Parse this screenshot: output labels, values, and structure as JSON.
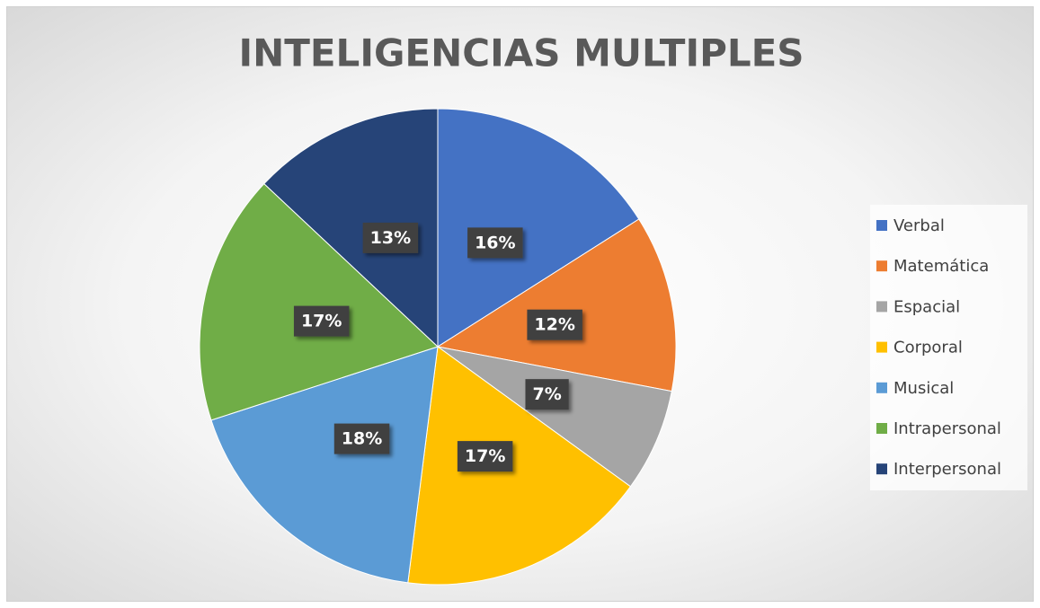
{
  "chart_data": {
    "type": "pie",
    "title": "INTELIGENCIAS MULTIPLES",
    "categories": [
      "Verbal",
      "Matemática",
      "Espacial",
      "Corporal",
      "Musical",
      "Intrapersonal",
      "Interpersonal"
    ],
    "values": [
      16,
      12,
      7,
      17,
      18,
      17,
      13
    ],
    "value_labels": [
      "16%",
      "12%",
      "7%",
      "17%",
      "18%",
      "17%",
      "13%"
    ],
    "colors": [
      "#4472c4",
      "#ed7d31",
      "#a5a5a5",
      "#ffc000",
      "#5b9bd5",
      "#70ad47",
      "#264478"
    ],
    "legend": "right"
  }
}
